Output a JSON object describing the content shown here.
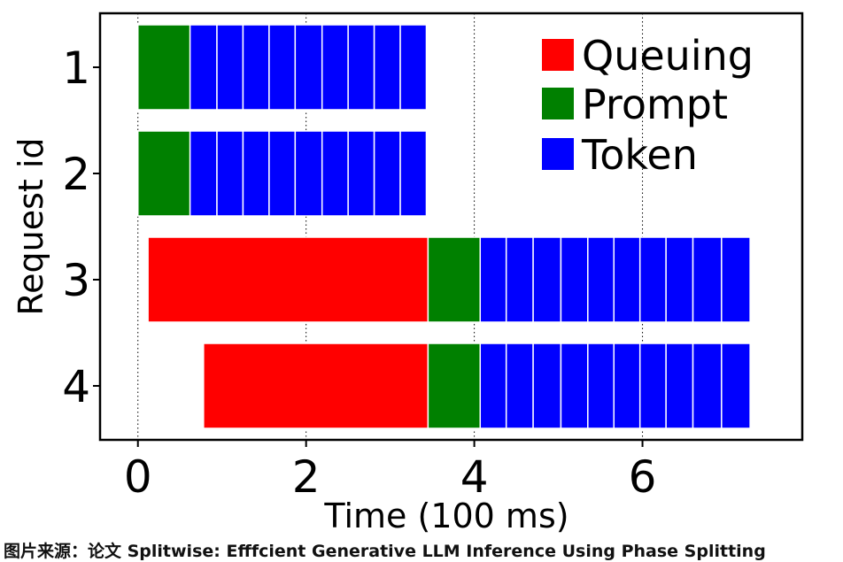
{
  "chart_data": {
    "type": "gantt",
    "xlabel": "Time (100 ms)",
    "ylabel": "Request id",
    "xlim": [
      -0.45,
      7.9
    ],
    "xticks": [
      0,
      2,
      4,
      6
    ],
    "grid": "vertical dotted at ticks",
    "legend": {
      "placement": "top-right",
      "entries": [
        {
          "label": "Queuing",
          "color": "#ff0000"
        },
        {
          "label": "Prompt",
          "color": "#008000"
        },
        {
          "label": "Token",
          "color": "#0000ff"
        }
      ]
    },
    "requests": [
      {
        "id": "1",
        "queuing": null,
        "prompt": [
          0,
          0.62
        ],
        "tokens": [
          0.62,
          0.94,
          1.25,
          1.56,
          1.87,
          2.19,
          2.5,
          2.81,
          3.12,
          3.43
        ]
      },
      {
        "id": "2",
        "queuing": null,
        "prompt": [
          0,
          0.62
        ],
        "tokens": [
          0.62,
          0.94,
          1.25,
          1.56,
          1.87,
          2.19,
          2.5,
          2.81,
          3.12,
          3.43
        ]
      },
      {
        "id": "3",
        "queuing": [
          0.12,
          3.45
        ],
        "prompt": [
          3.45,
          4.07
        ],
        "tokens": [
          4.07,
          4.38,
          4.7,
          5.03,
          5.35,
          5.66,
          5.97,
          6.28,
          6.6,
          6.94,
          7.28
        ]
      },
      {
        "id": "4",
        "queuing": [
          0.78,
          3.45
        ],
        "prompt": [
          3.45,
          4.07
        ],
        "tokens": [
          4.07,
          4.38,
          4.7,
          5.03,
          5.35,
          5.66,
          5.97,
          6.28,
          6.6,
          6.94,
          7.28
        ]
      }
    ]
  },
  "caption": "图片来源：论文 Splitwise: Efffcient Generative LLM Inference Using Phase Splitting"
}
